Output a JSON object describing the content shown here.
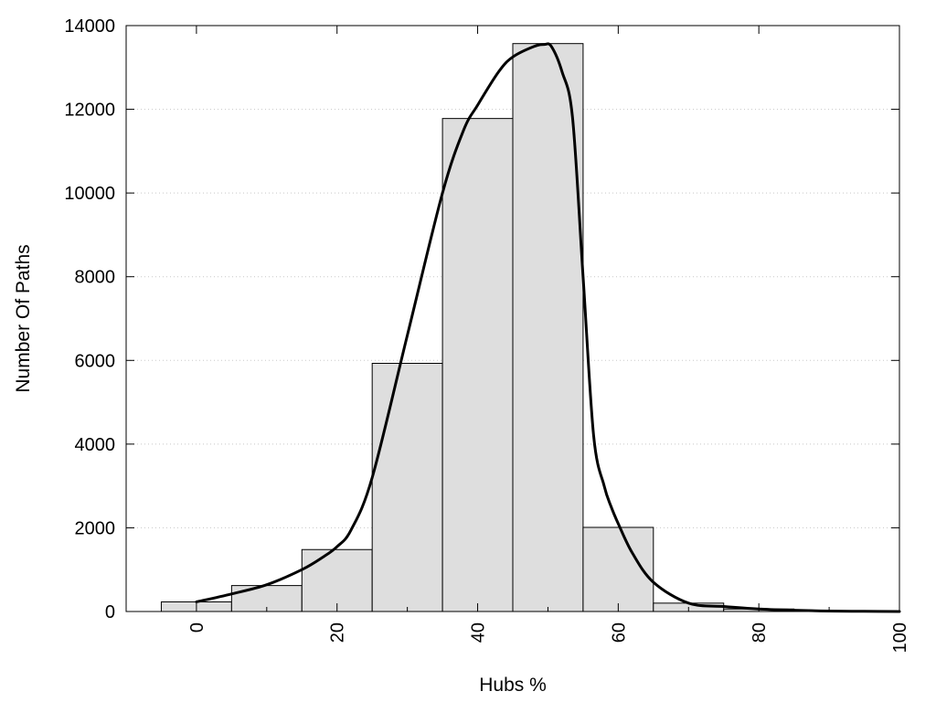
{
  "chart_data": {
    "type": "bar",
    "title": "",
    "xlabel": "Hubs %",
    "ylabel": "Number Of Paths",
    "xlim": [
      -10,
      100
    ],
    "ylim": [
      0,
      14000
    ],
    "x_ticks": [
      0,
      20,
      40,
      60,
      80,
      100
    ],
    "y_ticks": [
      0,
      2000,
      4000,
      6000,
      8000,
      10000,
      12000,
      14000
    ],
    "grid": "horizontal dotted",
    "bin_width": 10,
    "bins": [
      {
        "center": 0,
        "value": 230
      },
      {
        "center": 10,
        "value": 620
      },
      {
        "center": 20,
        "value": 1480
      },
      {
        "center": 30,
        "value": 5930
      },
      {
        "center": 40,
        "value": 11780
      },
      {
        "center": 50,
        "value": 13570
      },
      {
        "center": 60,
        "value": 2010
      },
      {
        "center": 70,
        "value": 200
      },
      {
        "center": 80,
        "value": 60
      },
      {
        "center": 90,
        "value": 20
      }
    ],
    "curve": {
      "x": [
        0,
        5,
        10,
        15,
        18,
        20,
        22,
        25,
        30,
        35,
        38,
        40,
        43,
        45,
        48,
        49.5,
        50.5,
        52,
        53.5,
        55,
        56.5,
        58,
        59,
        60,
        62,
        65,
        70,
        75,
        80,
        85,
        90,
        95,
        100
      ],
      "y": [
        230,
        420,
        640,
        1000,
        1300,
        1550,
        1950,
        3200,
        6600,
        10000,
        11500,
        12100,
        12900,
        13250,
        13500,
        13550,
        13500,
        12900,
        11800,
        8000,
        4200,
        3000,
        2500,
        2100,
        1400,
        700,
        200,
        120,
        60,
        30,
        10,
        5,
        0
      ]
    }
  }
}
